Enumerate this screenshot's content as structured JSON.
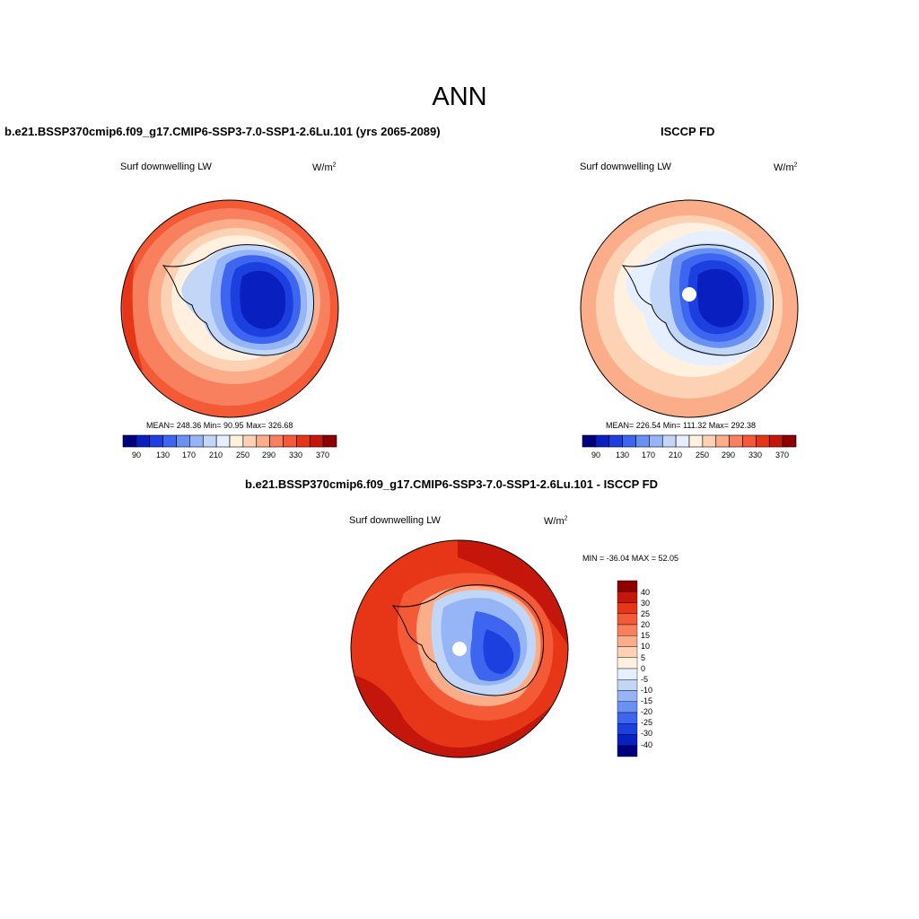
{
  "page_title": "ANN",
  "colors": {
    "scale": [
      "#00007f",
      "#0a1fbf",
      "#1c3fe0",
      "#3d65ef",
      "#6891f3",
      "#95b5f6",
      "#c2d6f8",
      "#e5efff",
      "#fff0e0",
      "#fdd1b3",
      "#fbad89",
      "#f9805e",
      "#f45a35",
      "#e63617",
      "#c5160b",
      "#8c0000"
    ],
    "diff_scale": [
      "#00007f",
      "#0a1fbf",
      "#1c3fe0",
      "#3d65ef",
      "#6891f3",
      "#95b5f6",
      "#c2d6f8",
      "#e5efff",
      "#fff0e0",
      "#fdd1b3",
      "#fbad89",
      "#f9805e",
      "#f45a35",
      "#e63617",
      "#c5160b",
      "#8c0000"
    ]
  },
  "panels": {
    "left": {
      "case_title": "b.e21.BSSP370cmip6.f09_g17.CMIP6-SSP3-7.0-SSP1-2.6Lu.101 (yrs 2065-2089)",
      "variable": "Surf downwelling LW",
      "units_base": "W/m",
      "units_exp": "2",
      "stats": "MEAN= 248.36  Min=  90.95  Max= 326.68",
      "colorbar_labels": [
        "90",
        "130",
        "170",
        "210",
        "250",
        "290",
        "330",
        "370"
      ]
    },
    "right": {
      "case_title": "ISCCP FD",
      "variable": "Surf downwelling LW",
      "units_base": "W/m",
      "units_exp": "2",
      "stats": "MEAN= 226.54  Min= 111.32  Max= 292.38",
      "colorbar_labels": [
        "90",
        "130",
        "170",
        "210",
        "250",
        "290",
        "330",
        "370"
      ]
    },
    "diff": {
      "case_title": "b.e21.BSSP370cmip6.f09_g17.CMIP6-SSP3-7.0-SSP1-2.6Lu.101 - ISCCP FD",
      "variable": "Surf downwelling LW",
      "units_base": "W/m",
      "units_exp": "2",
      "stats": "MIN = -36.04 MAX =  52.05",
      "colorbar_labels": [
        "40",
        "30",
        "25",
        "20",
        "15",
        "10",
        "5",
        "0",
        "-5",
        "-10",
        "-15",
        "-20",
        "-25",
        "-30",
        "-40"
      ]
    }
  }
}
